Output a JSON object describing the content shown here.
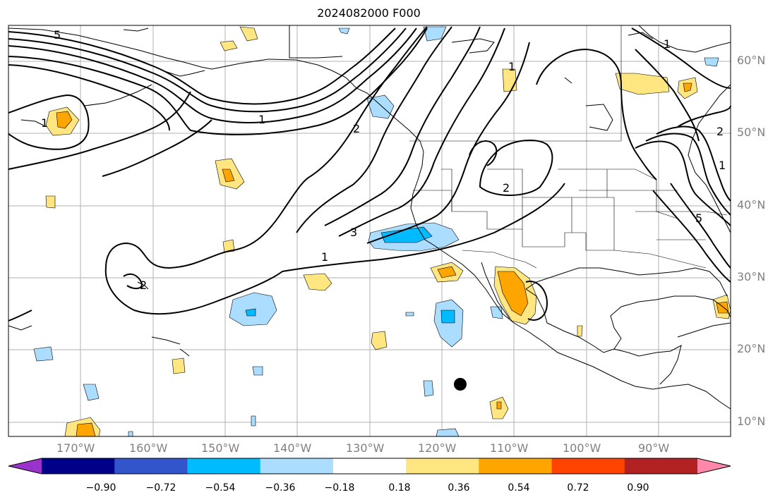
{
  "title": "2024082000 F000",
  "map": {
    "lat_labels": [
      "60°N",
      "50°N",
      "40°N",
      "30°N",
      "20°N",
      "10°N"
    ],
    "lon_labels": [
      "170°W",
      "160°W",
      "150°W",
      "140°W",
      "130°W",
      "120°W",
      "110°W",
      "100°W",
      "90°W"
    ],
    "contour_labels": [
      "5",
      "1",
      "2",
      "1",
      "2",
      "1",
      "2",
      "3",
      "1",
      "1",
      "2",
      "1",
      "5"
    ],
    "colors": {
      "contour": "#000000",
      "coast": "#000000",
      "grid": "#b0b0b0",
      "point_marker": "#000000"
    }
  },
  "colorbar": {
    "ticks": [
      "−0.90",
      "−0.72",
      "−0.54",
      "−0.36",
      "−0.18",
      "0.18",
      "0.36",
      "0.54",
      "0.72",
      "0.90"
    ],
    "colors": [
      "#9933cc",
      "#000088",
      "#3355cc",
      "#00bbff",
      "#aaddff",
      "#ffffff",
      "#ffe680",
      "#ffa500",
      "#ff4400",
      "#b22222",
      "#ff88aa"
    ]
  }
}
